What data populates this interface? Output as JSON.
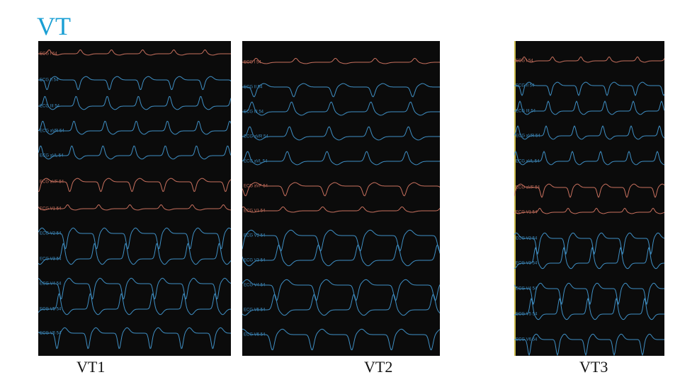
{
  "title": "VT",
  "panels": [
    {
      "caption": "VT1",
      "leads": [
        "ECG I 54",
        "ECG II 54",
        "ECG III 54",
        "ECG aVR 54",
        "ECG aVL 54",
        "ECG aVF 54",
        "ECG V1 54",
        "ECG V2 54",
        "ECG V3 54",
        "ECG V4 54",
        "ECG V5 54",
        "ECG V6 54"
      ]
    },
    {
      "caption": "VT2",
      "leads": [
        "ECG I 54",
        "ECG II 54",
        "ECG III 54",
        "ECG aVR 54",
        "ECG aVL 54",
        "ECG aVF 54",
        "ECG V1 54",
        "ECG V2 54",
        "ECG V3 54",
        "ECG V4 54",
        "ECG V5 54",
        "ECG V6 54"
      ]
    },
    {
      "caption": "VT3",
      "leads": [
        "ECG I 54",
        "ECG II 54",
        "ECG III 54",
        "ECG aVR 54",
        "ECG aVL 54",
        "ECG aVF 54",
        "ECG V1 54",
        "ECG V2 54",
        "ECG V3 54",
        "ECG V4 54",
        "ECG V5 54",
        "ECG V6 54"
      ]
    }
  ]
}
